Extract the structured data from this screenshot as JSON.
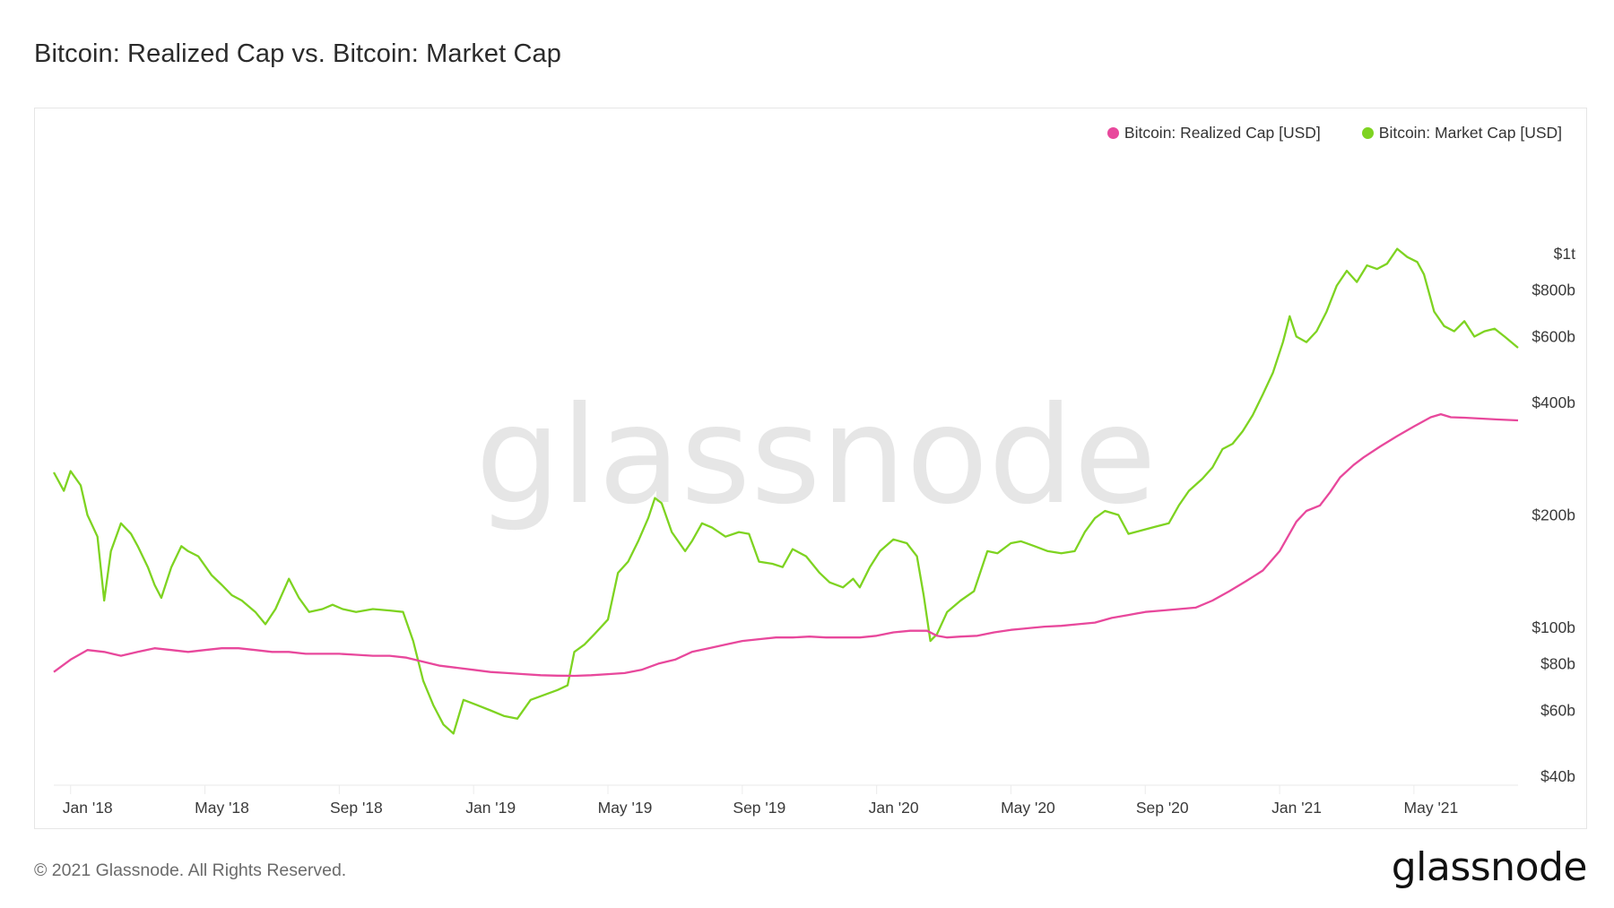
{
  "header": {
    "title": "Bitcoin: Realized Cap vs. Bitcoin: Market Cap"
  },
  "legend": [
    {
      "label": "Bitcoin: Realized Cap [USD]",
      "color": "#e8489c"
    },
    {
      "label": "Bitcoin: Market Cap [USD]",
      "color": "#7ed321"
    }
  ],
  "watermark": "glassnode",
  "footer": {
    "copyright": "© 2021 Glassnode. All Rights Reserved.",
    "brand": "glassnode"
  },
  "chart_data": {
    "type": "line",
    "title": "Bitcoin: Realized Cap vs. Bitcoin: Market Cap",
    "xlabel": "",
    "ylabel": "USD",
    "yscale": "log",
    "ylim": [
      38,
      1150
    ],
    "y_ticks": [
      {
        "label": "$1t",
        "value": 1000
      },
      {
        "label": "$800b",
        "value": 800
      },
      {
        "label": "$600b",
        "value": 600
      },
      {
        "label": "$400b",
        "value": 400
      },
      {
        "label": "$200b",
        "value": 200
      },
      {
        "label": "$100b",
        "value": 100
      },
      {
        "label": "$80b",
        "value": 80
      },
      {
        "label": "$60b",
        "value": 60
      },
      {
        "label": "$40b",
        "value": 40
      }
    ],
    "x_ticks": [
      "Jan '18",
      "May '18",
      "Sep '18",
      "Jan '19",
      "May '19",
      "Sep '19",
      "Jan '20",
      "May '20",
      "Sep '20",
      "Jan '21",
      "May '21"
    ],
    "x_tick_t": [
      0.5,
      4.5,
      8.5,
      12.5,
      16.5,
      20.5,
      24.5,
      28.5,
      32.5,
      36.5,
      40.5
    ],
    "x_range": [
      0,
      43.6
    ],
    "grid": false,
    "legend_position": "top-right",
    "series": [
      {
        "name": "Bitcoin: Market Cap [USD]",
        "color": "#7ed321",
        "unit": "billion USD",
        "points": [
          [
            0.0,
            260
          ],
          [
            0.3,
            232
          ],
          [
            0.5,
            262
          ],
          [
            0.8,
            240
          ],
          [
            1.0,
            200
          ],
          [
            1.3,
            175
          ],
          [
            1.5,
            118
          ],
          [
            1.7,
            160
          ],
          [
            2.0,
            190
          ],
          [
            2.3,
            178
          ],
          [
            2.5,
            165
          ],
          [
            2.8,
            145
          ],
          [
            3.0,
            130
          ],
          [
            3.2,
            120
          ],
          [
            3.5,
            145
          ],
          [
            3.8,
            165
          ],
          [
            4.0,
            160
          ],
          [
            4.3,
            155
          ],
          [
            4.7,
            138
          ],
          [
            5.0,
            130
          ],
          [
            5.3,
            122
          ],
          [
            5.6,
            118
          ],
          [
            6.0,
            110
          ],
          [
            6.3,
            102
          ],
          [
            6.6,
            112
          ],
          [
            7.0,
            135
          ],
          [
            7.3,
            120
          ],
          [
            7.6,
            110
          ],
          [
            8.0,
            112
          ],
          [
            8.3,
            115
          ],
          [
            8.6,
            112
          ],
          [
            9.0,
            110
          ],
          [
            9.5,
            112
          ],
          [
            10.0,
            111
          ],
          [
            10.4,
            110
          ],
          [
            10.7,
            92
          ],
          [
            11.0,
            72
          ],
          [
            11.3,
            62
          ],
          [
            11.6,
            55
          ],
          [
            11.9,
            52
          ],
          [
            12.2,
            64
          ],
          [
            12.6,
            62
          ],
          [
            13.0,
            60
          ],
          [
            13.4,
            58
          ],
          [
            13.8,
            57
          ],
          [
            14.2,
            64
          ],
          [
            14.6,
            66
          ],
          [
            15.0,
            68
          ],
          [
            15.3,
            70
          ],
          [
            15.5,
            86
          ],
          [
            15.8,
            90
          ],
          [
            16.1,
            96
          ],
          [
            16.5,
            105
          ],
          [
            16.8,
            140
          ],
          [
            17.1,
            150
          ],
          [
            17.4,
            170
          ],
          [
            17.7,
            196
          ],
          [
            17.9,
            222
          ],
          [
            18.1,
            215
          ],
          [
            18.4,
            180
          ],
          [
            18.8,
            160
          ],
          [
            19.0,
            170
          ],
          [
            19.3,
            190
          ],
          [
            19.6,
            185
          ],
          [
            20.0,
            175
          ],
          [
            20.4,
            180
          ],
          [
            20.7,
            178
          ],
          [
            21.0,
            150
          ],
          [
            21.4,
            148
          ],
          [
            21.7,
            145
          ],
          [
            22.0,
            162
          ],
          [
            22.4,
            155
          ],
          [
            22.8,
            140
          ],
          [
            23.1,
            132
          ],
          [
            23.5,
            128
          ],
          [
            23.8,
            135
          ],
          [
            24.0,
            128
          ],
          [
            24.3,
            145
          ],
          [
            24.6,
            160
          ],
          [
            25.0,
            172
          ],
          [
            25.4,
            168
          ],
          [
            25.7,
            155
          ],
          [
            25.9,
            122
          ],
          [
            26.1,
            92
          ],
          [
            26.3,
            96
          ],
          [
            26.6,
            110
          ],
          [
            27.0,
            118
          ],
          [
            27.4,
            125
          ],
          [
            27.8,
            160
          ],
          [
            28.1,
            158
          ],
          [
            28.5,
            168
          ],
          [
            28.8,
            170
          ],
          [
            29.2,
            165
          ],
          [
            29.6,
            160
          ],
          [
            30.0,
            158
          ],
          [
            30.4,
            160
          ],
          [
            30.7,
            180
          ],
          [
            31.0,
            196
          ],
          [
            31.3,
            205
          ],
          [
            31.7,
            200
          ],
          [
            32.0,
            178
          ],
          [
            32.4,
            182
          ],
          [
            32.8,
            186
          ],
          [
            33.2,
            190
          ],
          [
            33.5,
            212
          ],
          [
            33.8,
            232
          ],
          [
            34.2,
            250
          ],
          [
            34.5,
            268
          ],
          [
            34.8,
            300
          ],
          [
            35.1,
            310
          ],
          [
            35.4,
            335
          ],
          [
            35.7,
            370
          ],
          [
            36.0,
            420
          ],
          [
            36.3,
            480
          ],
          [
            36.6,
            580
          ],
          [
            36.8,
            680
          ],
          [
            37.0,
            600
          ],
          [
            37.3,
            580
          ],
          [
            37.6,
            620
          ],
          [
            37.9,
            700
          ],
          [
            38.2,
            820
          ],
          [
            38.5,
            900
          ],
          [
            38.8,
            840
          ],
          [
            39.1,
            930
          ],
          [
            39.4,
            910
          ],
          [
            39.7,
            940
          ],
          [
            40.0,
            1030
          ],
          [
            40.3,
            980
          ],
          [
            40.6,
            950
          ],
          [
            40.8,
            880
          ],
          [
            41.1,
            700
          ],
          [
            41.4,
            640
          ],
          [
            41.7,
            620
          ],
          [
            42.0,
            660
          ],
          [
            42.3,
            600
          ],
          [
            42.6,
            620
          ],
          [
            42.9,
            630
          ],
          [
            43.2,
            600
          ],
          [
            43.6,
            560
          ]
        ]
      },
      {
        "name": "Bitcoin: Realized Cap [USD]",
        "color": "#e8489c",
        "unit": "billion USD",
        "points": [
          [
            0.0,
            76
          ],
          [
            0.5,
            82
          ],
          [
            1.0,
            87
          ],
          [
            1.5,
            86
          ],
          [
            2.0,
            84
          ],
          [
            2.5,
            86
          ],
          [
            3.0,
            88
          ],
          [
            3.5,
            87
          ],
          [
            4.0,
            86
          ],
          [
            4.5,
            87
          ],
          [
            5.0,
            88
          ],
          [
            5.5,
            88
          ],
          [
            6.0,
            87
          ],
          [
            6.5,
            86
          ],
          [
            7.0,
            86
          ],
          [
            7.5,
            85
          ],
          [
            8.0,
            85
          ],
          [
            8.5,
            85
          ],
          [
            9.0,
            84.5
          ],
          [
            9.5,
            84
          ],
          [
            10.0,
            84
          ],
          [
            10.5,
            83
          ],
          [
            11.0,
            81
          ],
          [
            11.5,
            79
          ],
          [
            12.0,
            78
          ],
          [
            12.5,
            77
          ],
          [
            13.0,
            76
          ],
          [
            13.5,
            75.5
          ],
          [
            14.0,
            75
          ],
          [
            14.5,
            74.5
          ],
          [
            15.0,
            74.3
          ],
          [
            15.5,
            74.2
          ],
          [
            16.0,
            74.5
          ],
          [
            16.5,
            75
          ],
          [
            17.0,
            75.5
          ],
          [
            17.5,
            77
          ],
          [
            18.0,
            80
          ],
          [
            18.5,
            82
          ],
          [
            19.0,
            86
          ],
          [
            19.5,
            88
          ],
          [
            20.0,
            90
          ],
          [
            20.5,
            92
          ],
          [
            21.0,
            93
          ],
          [
            21.5,
            94
          ],
          [
            22.0,
            94
          ],
          [
            22.5,
            94.5
          ],
          [
            23.0,
            94
          ],
          [
            23.5,
            94
          ],
          [
            24.0,
            94
          ],
          [
            24.5,
            95
          ],
          [
            25.0,
            97
          ],
          [
            25.5,
            98
          ],
          [
            26.0,
            98
          ],
          [
            26.3,
            95
          ],
          [
            26.6,
            94
          ],
          [
            27.0,
            94.5
          ],
          [
            27.5,
            95
          ],
          [
            28.0,
            97
          ],
          [
            28.5,
            98.5
          ],
          [
            29.0,
            99.5
          ],
          [
            29.5,
            100.5
          ],
          [
            30.0,
            101
          ],
          [
            30.5,
            102
          ],
          [
            31.0,
            103
          ],
          [
            31.5,
            106
          ],
          [
            32.0,
            108
          ],
          [
            32.5,
            110
          ],
          [
            33.0,
            111
          ],
          [
            33.5,
            112
          ],
          [
            34.0,
            113
          ],
          [
            34.5,
            118
          ],
          [
            35.0,
            125
          ],
          [
            35.5,
            133
          ],
          [
            36.0,
            142
          ],
          [
            36.5,
            160
          ],
          [
            37.0,
            192
          ],
          [
            37.3,
            205
          ],
          [
            37.7,
            212
          ],
          [
            38.0,
            230
          ],
          [
            38.3,
            252
          ],
          [
            38.7,
            272
          ],
          [
            39.0,
            285
          ],
          [
            39.5,
            305
          ],
          [
            40.0,
            325
          ],
          [
            40.5,
            345
          ],
          [
            41.0,
            365
          ],
          [
            41.3,
            372
          ],
          [
            41.6,
            365
          ],
          [
            42.0,
            364
          ],
          [
            42.5,
            362
          ],
          [
            43.0,
            360
          ],
          [
            43.6,
            358
          ]
        ]
      }
    ]
  }
}
